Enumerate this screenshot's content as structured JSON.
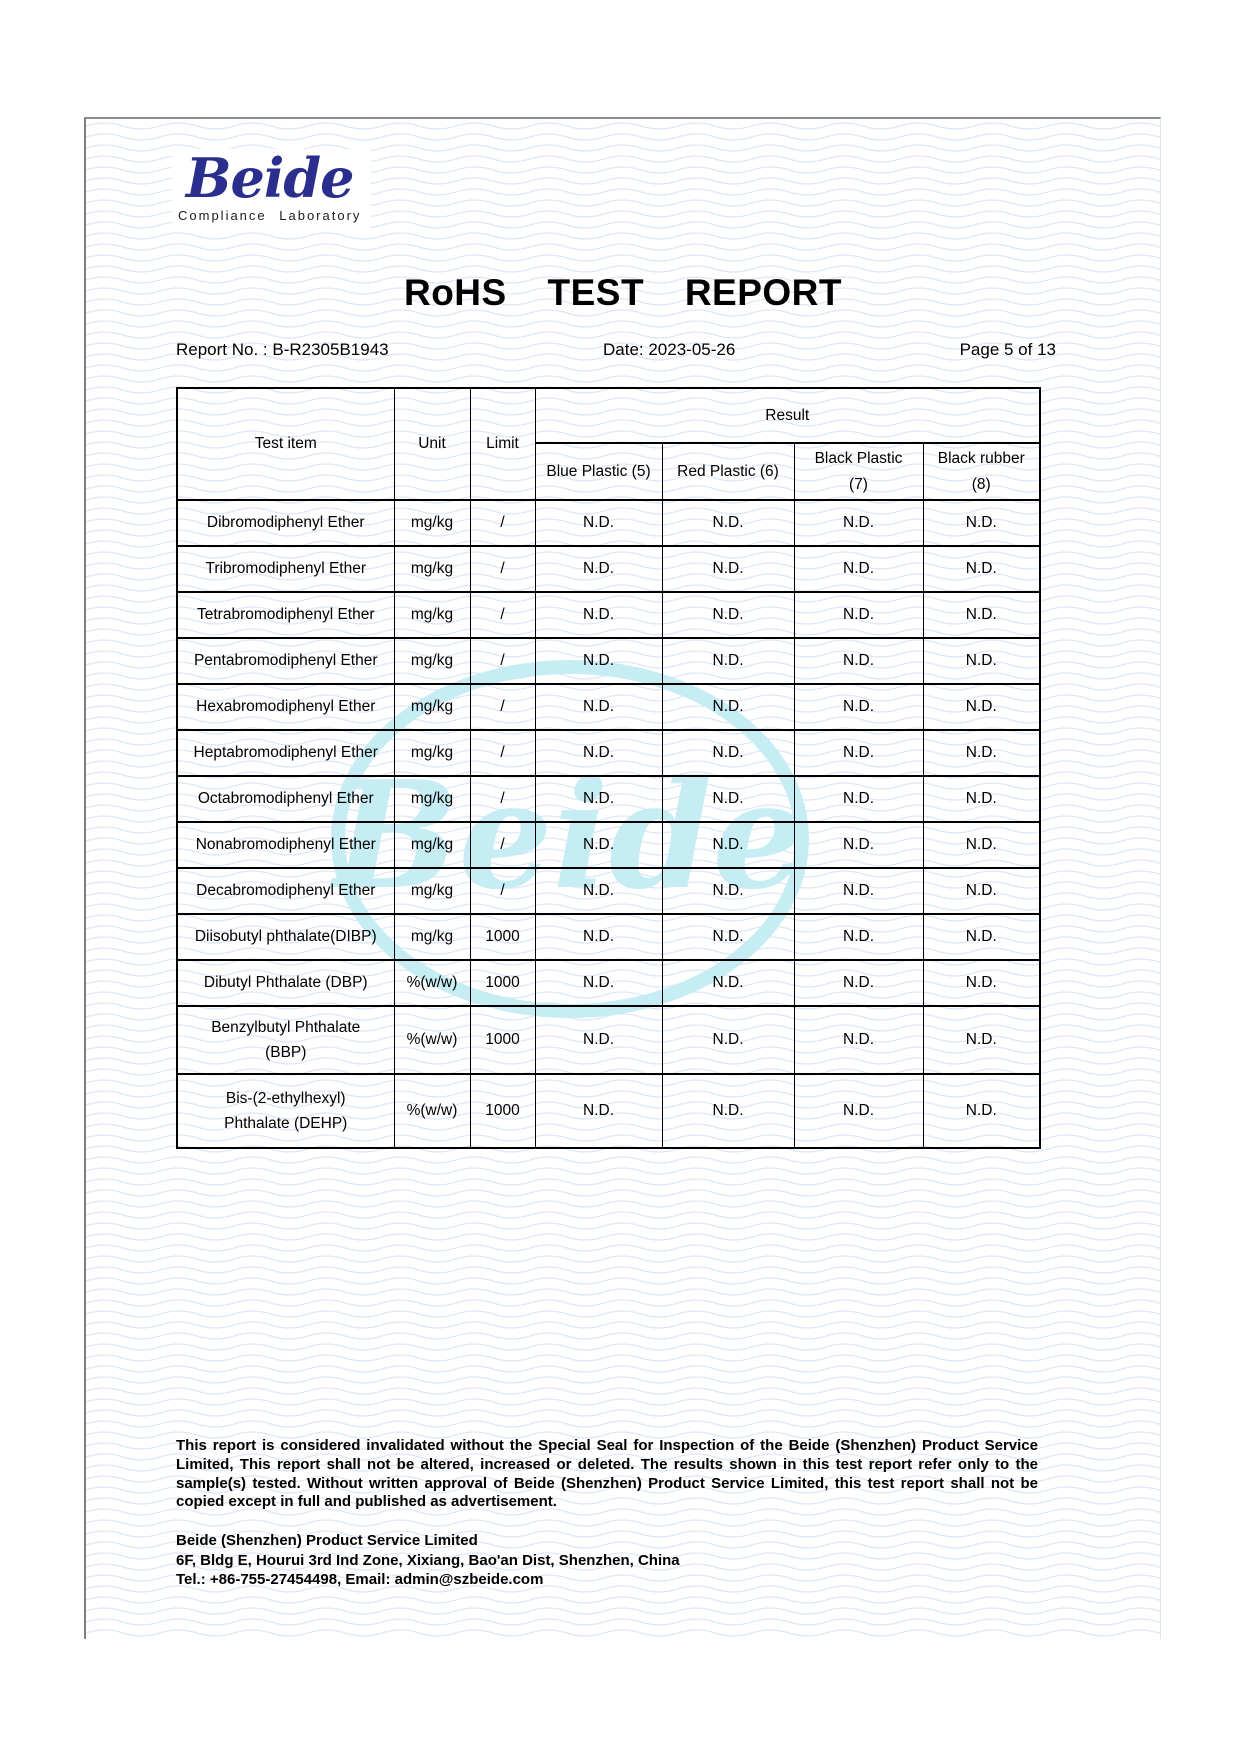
{
  "page": {
    "logo": {
      "name": "Beide",
      "subtitle": "Compliance Laboratory"
    },
    "title": "RoHS TEST REPORT",
    "meta": {
      "report_no": "Report No. : B-R2305B1943",
      "date": "Date: 2023-05-26",
      "page": "Page 5 of 13"
    },
    "watermark": "Beide"
  },
  "table": {
    "headers": {
      "test_item": "Test item",
      "unit": "Unit",
      "limit": "Limit",
      "result": "Result"
    },
    "result_columns": [
      "Blue Plastic (5)",
      "Red Plastic (6)",
      "Black Plastic\n(7)",
      "Black rubber\n(8)"
    ],
    "rows": [
      {
        "item": "Dibromodiphenyl Ether",
        "unit": "mg/kg",
        "limit": "/",
        "results": [
          "N.D.",
          "N.D.",
          "N.D.",
          "N.D."
        ]
      },
      {
        "item": "Tribromodiphenyl Ether",
        "unit": "mg/kg",
        "limit": "/",
        "results": [
          "N.D.",
          "N.D.",
          "N.D.",
          "N.D."
        ]
      },
      {
        "item": "Tetrabromodiphenyl Ether",
        "unit": "mg/kg",
        "limit": "/",
        "results": [
          "N.D.",
          "N.D.",
          "N.D.",
          "N.D."
        ]
      },
      {
        "item": "Pentabromodiphenyl Ether",
        "unit": "mg/kg",
        "limit": "/",
        "results": [
          "N.D.",
          "N.D.",
          "N.D.",
          "N.D."
        ]
      },
      {
        "item": "Hexabromodiphenyl Ether",
        "unit": "mg/kg",
        "limit": "/",
        "results": [
          "N.D.",
          "N.D.",
          "N.D.",
          "N.D."
        ]
      },
      {
        "item": "Heptabromodiphenyl Ether",
        "unit": "mg/kg",
        "limit": "/",
        "results": [
          "N.D.",
          "N.D.",
          "N.D.",
          "N.D."
        ]
      },
      {
        "item": "Octabromodiphenyl Ether",
        "unit": "mg/kg",
        "limit": "/",
        "results": [
          "N.D.",
          "N.D.",
          "N.D.",
          "N.D."
        ]
      },
      {
        "item": "Nonabromodiphenyl Ether",
        "unit": "mg/kg",
        "limit": "/",
        "results": [
          "N.D.",
          "N.D.",
          "N.D.",
          "N.D."
        ]
      },
      {
        "item": "Decabromodiphenyl Ether",
        "unit": "mg/kg",
        "limit": "/",
        "results": [
          "N.D.",
          "N.D.",
          "N.D.",
          "N.D."
        ]
      },
      {
        "item": "Diisobutyl phthalate(DIBP)",
        "unit": "mg/kg",
        "limit": "1000",
        "results": [
          "N.D.",
          "N.D.",
          "N.D.",
          "N.D."
        ]
      },
      {
        "item": "Dibutyl Phthalate (DBP)",
        "unit": "%(w/w)",
        "limit": "1000",
        "results": [
          "N.D.",
          "N.D.",
          "N.D.",
          "N.D."
        ]
      },
      {
        "item": "Benzylbutyl Phthalate\n(BBP)",
        "unit": "%(w/w)",
        "limit": "1000",
        "results": [
          "N.D.",
          "N.D.",
          "N.D.",
          "N.D."
        ]
      },
      {
        "item": "Bis-(2-ethylhexyl)\nPhthalate (DEHP)",
        "unit": "%(w/w)",
        "limit": "1000",
        "results": [
          "N.D.",
          "N.D.",
          "N.D.",
          "N.D."
        ]
      }
    ]
  },
  "footer": {
    "disclaimer": "This report is considered invalidated without the Special Seal for Inspection of the Beide (Shenzhen) Product Service Limited, This report shall not be altered, increased or deleted. The results shown in this test report refer only to the sample(s) tested. Without written approval of Beide (Shenzhen) Product Service Limited, this test report shall not be copied except in full and published as advertisement.",
    "company": "Beide (Shenzhen) Product Service Limited",
    "address": "6F, Bldg E, Hourui 3rd Ind Zone, Xixiang, Bao'an Dist, Shenzhen, China",
    "contact": "Tel.: +86-755-27454498, Email: admin@szbeide.com"
  },
  "colors": {
    "logo_blue": "#2a2e8c",
    "watermark_cyan": "#c6edf4",
    "wave_line": "#dde7f3",
    "border_black": "#000000"
  }
}
